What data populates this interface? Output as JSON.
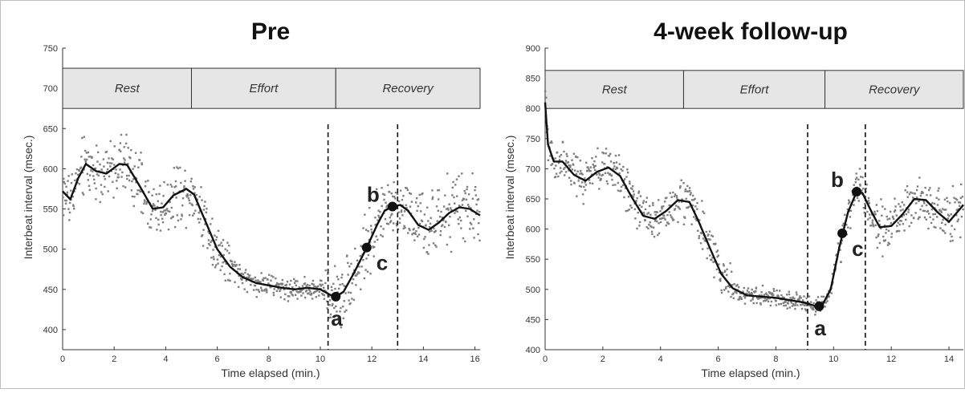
{
  "chart_data": [
    {
      "type": "scatter",
      "title": "Pre",
      "xlabel": "Time elapsed (min.)",
      "ylabel": "Interbeat interval (msec.)",
      "xlim": [
        0,
        16.2
      ],
      "ylim": [
        375,
        750
      ],
      "xticks": [
        0,
        2,
        4,
        6,
        8,
        10,
        12,
        14,
        16
      ],
      "yticks": [
        400,
        450,
        500,
        550,
        600,
        650,
        700,
        750
      ],
      "phases": [
        {
          "label": "Rest",
          "start": 0,
          "end": 5.0
        },
        {
          "label": "Effort",
          "start": 5.0,
          "end": 10.6
        },
        {
          "label": "Recovery",
          "start": 10.6,
          "end": 16.2
        }
      ],
      "phase_band": [
        675,
        725
      ],
      "vlines": [
        10.3,
        13.0
      ],
      "smooth_curve": [
        [
          0,
          572
        ],
        [
          0.3,
          562
        ],
        [
          0.6,
          588
        ],
        [
          0.9,
          606
        ],
        [
          1.3,
          597
        ],
        [
          1.7,
          594
        ],
        [
          2.2,
          606
        ],
        [
          2.5,
          605
        ],
        [
          3.0,
          578
        ],
        [
          3.5,
          550
        ],
        [
          3.9,
          552
        ],
        [
          4.3,
          567
        ],
        [
          4.8,
          575
        ],
        [
          5.1,
          568
        ],
        [
          5.5,
          538
        ],
        [
          6.0,
          500
        ],
        [
          6.5,
          478
        ],
        [
          7.0,
          465
        ],
        [
          7.5,
          458
        ],
        [
          8.0,
          455
        ],
        [
          8.5,
          452
        ],
        [
          9.0,
          450
        ],
        [
          9.5,
          452
        ],
        [
          10.0,
          450
        ],
        [
          10.4,
          443
        ],
        [
          10.6,
          441
        ],
        [
          10.9,
          447
        ],
        [
          11.3,
          470
        ],
        [
          11.8,
          502
        ],
        [
          12.2,
          530
        ],
        [
          12.5,
          548
        ],
        [
          12.8,
          553
        ],
        [
          13.1,
          555
        ],
        [
          13.4,
          548
        ],
        [
          13.8,
          530
        ],
        [
          14.2,
          524
        ],
        [
          14.6,
          533
        ],
        [
          15.0,
          545
        ],
        [
          15.4,
          552
        ],
        [
          15.8,
          550
        ],
        [
          16.2,
          542
        ]
      ],
      "points": [
        {
          "label": "a",
          "x": 10.6,
          "y": 441
        },
        {
          "label": "b",
          "x": 12.8,
          "y": 553
        },
        {
          "label": "c",
          "x": 11.8,
          "y": 502
        }
      ]
    },
    {
      "type": "scatter",
      "title": "4-week follow-up",
      "xlabel": "Time elapsed (min.)",
      "ylabel": "Interbeat interval (msec.)",
      "xlim": [
        0,
        14.5
      ],
      "ylim": [
        400,
        900
      ],
      "xticks": [
        0,
        2,
        4,
        6,
        8,
        10,
        12,
        14
      ],
      "yticks": [
        400,
        450,
        500,
        550,
        600,
        650,
        700,
        750,
        800,
        850,
        900
      ],
      "phases": [
        {
          "label": "Rest",
          "start": 0,
          "end": 4.8
        },
        {
          "label": "Effort",
          "start": 4.8,
          "end": 9.7
        },
        {
          "label": "Recovery",
          "start": 9.7,
          "end": 14.5
        }
      ],
      "phase_band": [
        800,
        863
      ],
      "vlines": [
        9.1,
        11.1
      ],
      "smooth_curve": [
        [
          0,
          810
        ],
        [
          0.1,
          740
        ],
        [
          0.3,
          712
        ],
        [
          0.6,
          712
        ],
        [
          1.0,
          690
        ],
        [
          1.4,
          680
        ],
        [
          1.8,
          695
        ],
        [
          2.2,
          702
        ],
        [
          2.6,
          688
        ],
        [
          3.0,
          653
        ],
        [
          3.4,
          622
        ],
        [
          3.8,
          617
        ],
        [
          4.2,
          630
        ],
        [
          4.6,
          648
        ],
        [
          5.0,
          645
        ],
        [
          5.3,
          615
        ],
        [
          5.7,
          570
        ],
        [
          6.1,
          526
        ],
        [
          6.5,
          502
        ],
        [
          7.0,
          490
        ],
        [
          7.5,
          488
        ],
        [
          8.0,
          486
        ],
        [
          8.5,
          482
        ],
        [
          9.0,
          478
        ],
        [
          9.4,
          472
        ],
        [
          9.6,
          473
        ],
        [
          9.9,
          500
        ],
        [
          10.2,
          570
        ],
        [
          10.5,
          628
        ],
        [
          10.8,
          662
        ],
        [
          11.0,
          660
        ],
        [
          11.3,
          630
        ],
        [
          11.6,
          603
        ],
        [
          12.0,
          605
        ],
        [
          12.4,
          625
        ],
        [
          12.8,
          650
        ],
        [
          13.2,
          648
        ],
        [
          13.6,
          628
        ],
        [
          14.0,
          612
        ],
        [
          14.5,
          640
        ]
      ],
      "points": [
        {
          "label": "a",
          "x": 9.5,
          "y": 472
        },
        {
          "label": "b",
          "x": 10.8,
          "y": 662
        },
        {
          "label": "c",
          "x": 10.3,
          "y": 593
        }
      ]
    }
  ]
}
